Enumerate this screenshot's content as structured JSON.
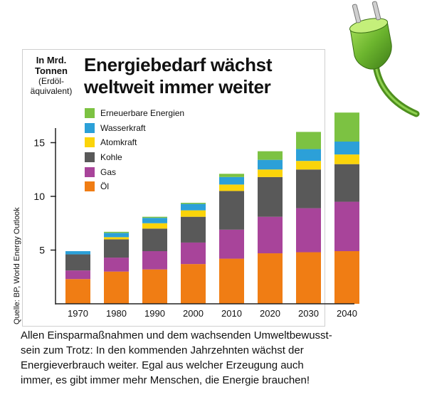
{
  "unit_label": {
    "line1": "In Mrd.",
    "line2": "Tonnen",
    "line3": "(Erdöl-",
    "line4": "äquivalent)"
  },
  "title": {
    "line1": "Energiebedarf wächst",
    "line2": "weltweit immer weiter"
  },
  "source": "Quelle: BP, World Energy Outlook",
  "caption": {
    "line1": "Allen Einsparmaßnahmen und dem wachsenden Umweltbewusst-",
    "line2": "sein zum Trotz: In den kommenden Jahrzehnten wächst der",
    "line3": "Energieverbrauch weiter. Egal aus welcher Erzeugung auch",
    "line4": "immer, es gibt immer mehr Menschen, die Energie brauchen!"
  },
  "icons": {
    "decoration": "power-plug-icon"
  },
  "chart_data": {
    "type": "bar",
    "stacked": true,
    "categories": [
      "1970",
      "1980",
      "1990",
      "2000",
      "2010",
      "2020",
      "2030",
      "2040"
    ],
    "series": [
      {
        "name": "Öl",
        "color": "#f07d14",
        "values": [
          2.3,
          3.0,
          3.2,
          3.7,
          4.2,
          4.7,
          4.8,
          4.9
        ]
      },
      {
        "name": "Gas",
        "color": "#a8449a",
        "values": [
          0.8,
          1.3,
          1.7,
          2.0,
          2.7,
          3.4,
          4.1,
          4.6
        ]
      },
      {
        "name": "Kohle",
        "color": "#595959",
        "values": [
          1.5,
          1.7,
          2.1,
          2.4,
          3.6,
          3.7,
          3.6,
          3.5
        ]
      },
      {
        "name": "Atomkraft",
        "color": "#fbd40a",
        "values": [
          0.0,
          0.2,
          0.5,
          0.6,
          0.6,
          0.7,
          0.8,
          0.9
        ]
      },
      {
        "name": "Wasserkraft",
        "color": "#2ca0d8",
        "values": [
          0.3,
          0.4,
          0.5,
          0.6,
          0.7,
          0.9,
          1.1,
          1.2
        ]
      },
      {
        "name": "Erneuerbare Energien",
        "color": "#7cc242",
        "values": [
          0.0,
          0.1,
          0.1,
          0.1,
          0.3,
          0.8,
          1.6,
          2.7
        ]
      }
    ],
    "legend_order": [
      "Erneuerbare Energien",
      "Wasserkraft",
      "Atomkraft",
      "Kohle",
      "Gas",
      "Öl"
    ],
    "yticks": [
      5,
      10,
      15
    ],
    "ylim": [
      0,
      18
    ],
    "ylabel": "In Mrd. Tonnen (Erdöl-äquivalent)",
    "title": "Energiebedarf wächst weltweit immer weiter",
    "grid": false,
    "legend_position": "top-left"
  }
}
